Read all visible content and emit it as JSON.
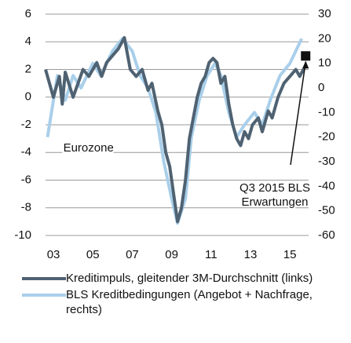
{
  "chart_data": {
    "type": "line",
    "annotations": [
      {
        "text": "Eurozone",
        "x": 2003.5,
        "y": -3.7
      }
    ],
    "expectation": {
      "lines": [
        "Q3 2015 BLS",
        "Erwartungen"
      ],
      "x": 2015.8,
      "value": 13,
      "axis": "y2",
      "color": "#111111"
    },
    "xlim": [
      2002.6,
      2015.95
    ],
    "xticks": [
      {
        "value": 2003,
        "label": "03"
      },
      {
        "value": 2005,
        "label": "05"
      },
      {
        "value": 2007,
        "label": "07"
      },
      {
        "value": 2009,
        "label": "09"
      },
      {
        "value": 2011,
        "label": "11"
      },
      {
        "value": 2013,
        "label": "13"
      },
      {
        "value": 2015,
        "label": "15"
      }
    ],
    "ylim": [
      -10,
      6
    ],
    "yticks": [
      -10,
      -8,
      -6,
      -4,
      -2,
      0,
      2,
      4,
      6
    ],
    "y2lim": [
      -60,
      30
    ],
    "y2ticks": [
      -60,
      -50,
      -40,
      -30,
      -20,
      -10,
      0,
      10,
      20,
      30
    ],
    "grid": true,
    "series": [
      {
        "name": "BLS Kreditbedingungen (Angebot + Nachfrage, rechts)",
        "color": "#a9cfea",
        "axis": "y2",
        "x": [
          2002.7,
          2003.2,
          2003.6,
          2004.0,
          2004.4,
          2005.0,
          2005.4,
          2006.0,
          2006.5,
          2007.0,
          2007.4,
          2007.8,
          2008.2,
          2008.6,
          2009.0,
          2009.3,
          2009.7,
          2010.0,
          2010.4,
          2010.8,
          2011.2,
          2011.5,
          2011.9,
          2012.3,
          2012.7,
          2013.2,
          2013.6,
          2014.0,
          2014.5,
          2015.0,
          2015.6
        ],
        "values": [
          -20,
          5,
          -5,
          5,
          0,
          10,
          5,
          15,
          20,
          15,
          5,
          0,
          -10,
          -30,
          -45,
          -55,
          -45,
          -20,
          -5,
          5,
          10,
          5,
          -10,
          -20,
          -15,
          -10,
          -15,
          -5,
          5,
          10,
          20
        ]
      },
      {
        "name": "Kreditimpuls, gleitender 3M-Durchschnitt (links)",
        "color": "#4f6272",
        "axis": "y",
        "x": [
          2002.6,
          2003.0,
          2003.3,
          2003.45,
          2003.6,
          2004.0,
          2004.5,
          2004.8,
          2005.2,
          2005.45,
          2005.7,
          2006.3,
          2006.6,
          2006.9,
          2007.2,
          2007.5,
          2007.8,
          2008.0,
          2008.3,
          2008.5,
          2008.7,
          2008.9,
          2009.1,
          2009.3,
          2009.5,
          2009.7,
          2009.9,
          2010.1,
          2010.3,
          2010.5,
          2010.7,
          2010.9,
          2011.1,
          2011.3,
          2011.5,
          2011.7,
          2011.9,
          2012.1,
          2012.3,
          2012.5,
          2012.7,
          2012.9,
          2013.1,
          2013.4,
          2013.6,
          2013.9,
          2014.1,
          2014.4,
          2014.7,
          2015.0,
          2015.3,
          2015.5,
          2015.8
        ],
        "values": [
          2,
          0,
          1.5,
          -0.5,
          1.8,
          0,
          2,
          1.5,
          2.5,
          1.5,
          2.5,
          3.5,
          4.3,
          2,
          1.5,
          2,
          0.5,
          1,
          -1,
          -2,
          -4,
          -5,
          -7,
          -9,
          -8,
          -6,
          -3,
          -1.5,
          0,
          1,
          1.5,
          2.5,
          2.8,
          2.5,
          1,
          1.5,
          -0.5,
          -2,
          -3,
          -3.5,
          -2.5,
          -3,
          -2,
          -1.5,
          -2.5,
          -1,
          -1.5,
          0,
          1,
          1.5,
          2,
          1.5,
          2.3
        ]
      }
    ],
    "legend_order": [
      1,
      0
    ]
  }
}
